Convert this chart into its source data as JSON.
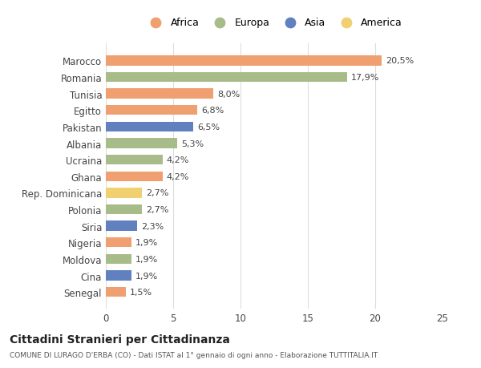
{
  "categories": [
    "Marocco",
    "Romania",
    "Tunisia",
    "Egitto",
    "Pakistan",
    "Albania",
    "Ucraina",
    "Ghana",
    "Rep. Dominicana",
    "Polonia",
    "Siria",
    "Nigeria",
    "Moldova",
    "Cina",
    "Senegal"
  ],
  "values": [
    20.5,
    17.9,
    8.0,
    6.8,
    6.5,
    5.3,
    4.2,
    4.2,
    2.7,
    2.7,
    2.3,
    1.9,
    1.9,
    1.9,
    1.5
  ],
  "labels": [
    "20,5%",
    "17,9%",
    "8,0%",
    "6,8%",
    "6,5%",
    "5,3%",
    "4,2%",
    "4,2%",
    "2,7%",
    "2,7%",
    "2,3%",
    "1,9%",
    "1,9%",
    "1,9%",
    "1,5%"
  ],
  "continents": [
    "Africa",
    "Europa",
    "Africa",
    "Africa",
    "Asia",
    "Europa",
    "Europa",
    "Africa",
    "America",
    "Europa",
    "Asia",
    "Africa",
    "Europa",
    "Asia",
    "Africa"
  ],
  "colors": {
    "Africa": "#F0A070",
    "Europa": "#A8BC8A",
    "Asia": "#6080C0",
    "America": "#F0D070"
  },
  "legend_order": [
    "Africa",
    "Europa",
    "Asia",
    "America"
  ],
  "title": "Cittadini Stranieri per Cittadinanza",
  "subtitle": "COMUNE DI LURAGO D'ERBA (CO) - Dati ISTAT al 1° gennaio di ogni anno - Elaborazione TUTTITALIA.IT",
  "xlim": [
    0,
    25
  ],
  "xticks": [
    0,
    5,
    10,
    15,
    20,
    25
  ],
  "background_color": "#ffffff",
  "grid_color": "#dddddd"
}
